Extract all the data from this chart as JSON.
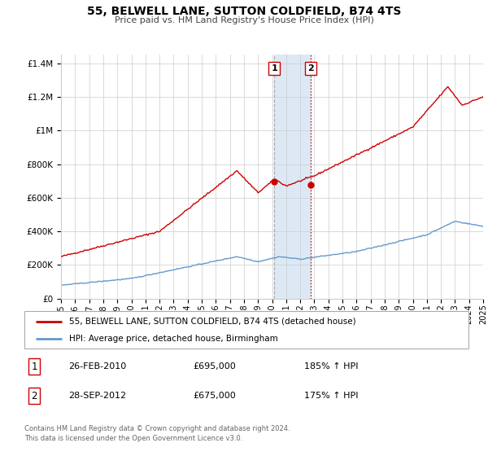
{
  "title": "55, BELWELL LANE, SUTTON COLDFIELD, B74 4TS",
  "subtitle": "Price paid vs. HM Land Registry's House Price Index (HPI)",
  "legend_label_red": "55, BELWELL LANE, SUTTON COLDFIELD, B74 4TS (detached house)",
  "legend_label_blue": "HPI: Average price, detached house, Birmingham",
  "transaction1_date": "26-FEB-2010",
  "transaction1_price": "£695,000",
  "transaction1_hpi": "185% ↑ HPI",
  "transaction1_year": 2010.15,
  "transaction1_value": 695000,
  "transaction2_date": "28-SEP-2012",
  "transaction2_price": "£675,000",
  "transaction2_hpi": "175% ↑ HPI",
  "transaction2_year": 2012.75,
  "transaction2_value": 675000,
  "footer": "Contains HM Land Registry data © Crown copyright and database right 2024.\nThis data is licensed under the Open Government Licence v3.0.",
  "ylim": [
    0,
    1450000
  ],
  "xlim_start": 1995,
  "xlim_end": 2025,
  "yticks": [
    0,
    200000,
    400000,
    600000,
    800000,
    1000000,
    1200000,
    1400000
  ],
  "ytick_labels": [
    "£0",
    "£200K",
    "£400K",
    "£600K",
    "£800K",
    "£1M",
    "£1.2M",
    "£1.4M"
  ],
  "red_color": "#cc0000",
  "blue_color": "#6699cc",
  "shade_color": "#dce9f5",
  "grid_color": "#cccccc",
  "background_color": "#ffffff"
}
